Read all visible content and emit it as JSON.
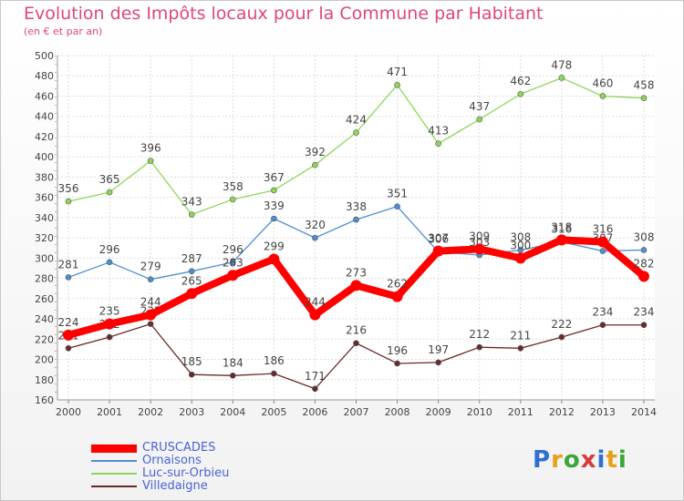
{
  "title": "Evolution des Impôts locaux pour la Commune par Habitant",
  "subtitle": "(en € et par an)",
  "logo": {
    "text": "Proxiti",
    "colors": [
      "#2f6fd1",
      "#e6a019",
      "#3aa63a",
      "#d63b3b",
      "#2f6fd1",
      "#e6a019",
      "#3aa63a"
    ]
  },
  "chart_data": {
    "type": "line",
    "title": "Evolution des Impôts locaux pour la Commune par Habitant",
    "subtitle": "(en € et par an)",
    "xlabel": "",
    "ylabel": "",
    "ylim": [
      160,
      500
    ],
    "y_ticks": [
      160,
      180,
      200,
      220,
      240,
      260,
      280,
      300,
      320,
      340,
      360,
      380,
      400,
      420,
      440,
      460,
      480,
      500
    ],
    "grid": true,
    "legend_position": "bottom-left",
    "categories": [
      "2000",
      "2001",
      "2002",
      "2003",
      "2004",
      "2005",
      "2006",
      "2007",
      "2008",
      "2009",
      "2010",
      "2011",
      "2012",
      "2013",
      "2014"
    ],
    "series": [
      {
        "name": "CRUSCADES",
        "color": "#ff0000",
        "thick": true,
        "values": [
          224,
          235,
          244,
          265,
          283,
          299,
          244,
          273,
          262,
          307,
          309,
          300,
          318,
          316,
          282
        ]
      },
      {
        "name": "Ornaisons",
        "color": "#4f8fd0",
        "thick": false,
        "values": [
          281,
          296,
          279,
          287,
          296,
          339,
          320,
          338,
          351,
          306,
          303,
          308,
          316,
          307,
          308
        ]
      },
      {
        "name": "Luc-sur-Orbieu",
        "color": "#8ed65a",
        "thick": false,
        "values": [
          356,
          365,
          396,
          343,
          358,
          367,
          392,
          424,
          471,
          413,
          437,
          462,
          478,
          460,
          458
        ]
      },
      {
        "name": "Villedaigne",
        "color": "#6b2a2a",
        "thick": false,
        "values": [
          211,
          222,
          235,
          185,
          184,
          186,
          171,
          216,
          196,
          197,
          212,
          211,
          222,
          234,
          234
        ]
      }
    ]
  }
}
